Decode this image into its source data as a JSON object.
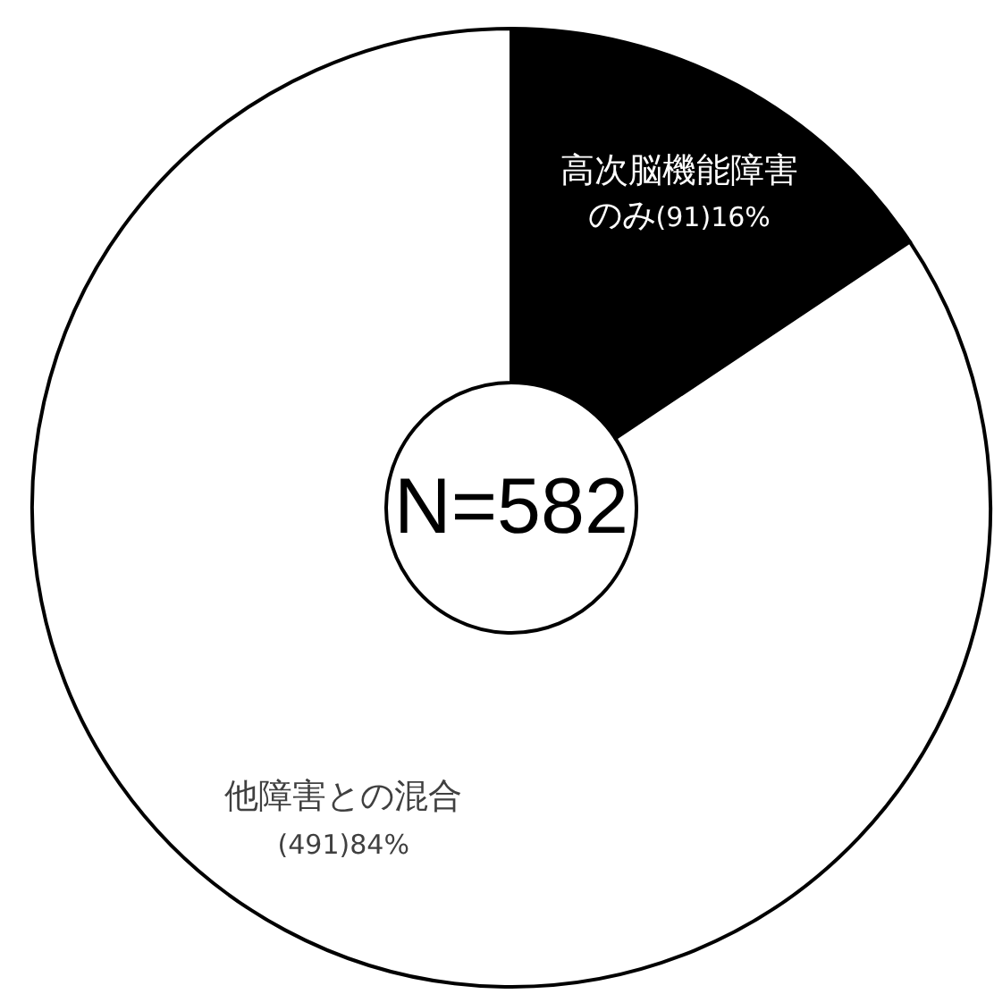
{
  "chart_data": {
    "type": "donut",
    "categories": [
      "高次脳機能障害のみ",
      "他障害との混合"
    ],
    "values": [
      91,
      491
    ],
    "value_labels": [
      "(91)16%",
      "(491)84%"
    ],
    "colors": [
      "#000000",
      "#ffffff"
    ],
    "annotations": [
      "N=582"
    ]
  }
}
